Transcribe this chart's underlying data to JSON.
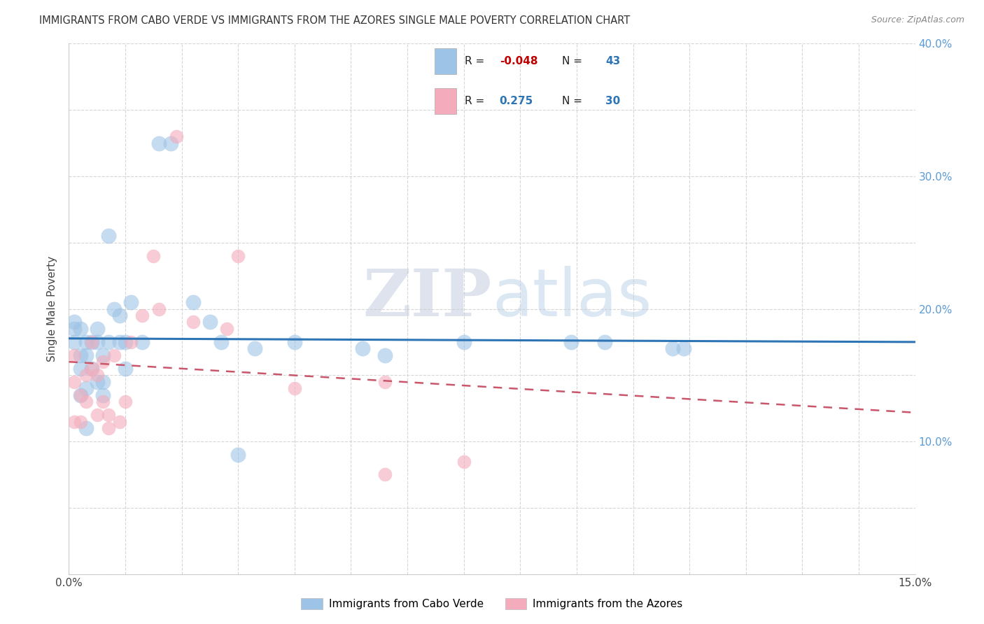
{
  "title": "IMMIGRANTS FROM CABO VERDE VS IMMIGRANTS FROM THE AZORES SINGLE MALE POVERTY CORRELATION CHART",
  "source": "Source: ZipAtlas.com",
  "ylabel": "Single Male Poverty",
  "xlim": [
    0,
    0.15
  ],
  "ylim": [
    0,
    0.4
  ],
  "cabo_verde_R": -0.048,
  "cabo_verde_N": 43,
  "azores_R": 0.275,
  "azores_N": 30,
  "cabo_verde_color": "#9DC3E6",
  "azores_color": "#F4ABBB",
  "cabo_verde_line_color": "#2E75B6",
  "azores_line_color": "#C9566A",
  "legend_label_1": "Immigrants from Cabo Verde",
  "legend_label_2": "Immigrants from the Azores",
  "watermark_zip": "ZIP",
  "watermark_atlas": "atlas",
  "background_color": "#FFFFFF",
  "grid_color": "#CCCCCC",
  "cabo_verde_x": [
    0.001,
    0.001,
    0.001,
    0.002,
    0.002,
    0.002,
    0.002,
    0.003,
    0.003,
    0.003,
    0.003,
    0.004,
    0.004,
    0.005,
    0.005,
    0.005,
    0.006,
    0.006,
    0.006,
    0.007,
    0.007,
    0.008,
    0.009,
    0.009,
    0.01,
    0.01,
    0.011,
    0.013,
    0.016,
    0.018,
    0.022,
    0.025,
    0.027,
    0.03,
    0.033,
    0.04,
    0.052,
    0.056,
    0.07,
    0.089,
    0.095,
    0.107,
    0.109
  ],
  "cabo_verde_y": [
    0.19,
    0.185,
    0.175,
    0.185,
    0.165,
    0.155,
    0.135,
    0.175,
    0.165,
    0.14,
    0.11,
    0.175,
    0.155,
    0.185,
    0.175,
    0.145,
    0.165,
    0.145,
    0.135,
    0.255,
    0.175,
    0.2,
    0.195,
    0.175,
    0.175,
    0.155,
    0.205,
    0.175,
    0.325,
    0.325,
    0.205,
    0.19,
    0.175,
    0.09,
    0.17,
    0.175,
    0.17,
    0.165,
    0.175,
    0.175,
    0.175,
    0.17,
    0.17
  ],
  "azores_x": [
    0.001,
    0.001,
    0.001,
    0.002,
    0.002,
    0.003,
    0.003,
    0.004,
    0.004,
    0.005,
    0.005,
    0.006,
    0.006,
    0.007,
    0.007,
    0.008,
    0.009,
    0.01,
    0.011,
    0.013,
    0.015,
    0.016,
    0.019,
    0.022,
    0.028,
    0.03,
    0.04,
    0.056,
    0.056,
    0.07
  ],
  "azores_y": [
    0.165,
    0.145,
    0.115,
    0.135,
    0.115,
    0.15,
    0.13,
    0.175,
    0.155,
    0.15,
    0.12,
    0.16,
    0.13,
    0.12,
    0.11,
    0.165,
    0.115,
    0.13,
    0.175,
    0.195,
    0.24,
    0.2,
    0.33,
    0.19,
    0.185,
    0.24,
    0.14,
    0.145,
    0.075,
    0.085
  ]
}
